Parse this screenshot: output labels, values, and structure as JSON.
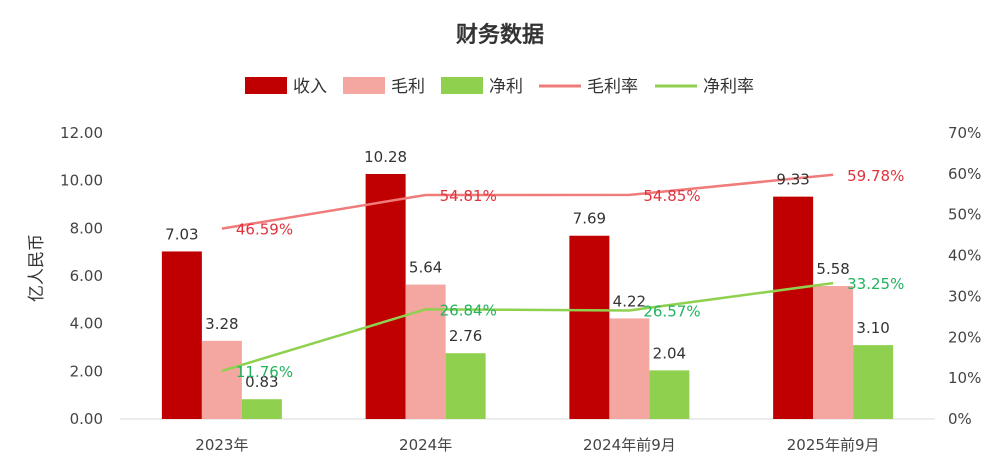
{
  "chart_data": {
    "type": "bar",
    "title": "财务数据",
    "ylabel": "亿人民币",
    "categories": [
      "2023年",
      "2024年",
      "2024年前9月",
      "2025年前9月"
    ],
    "ylim": [
      0,
      12
    ],
    "y_ticks": [
      "0.00",
      "2.00",
      "4.00",
      "6.00",
      "8.00",
      "10.00",
      "12.00"
    ],
    "y2lim": [
      0,
      70
    ],
    "y2_ticks": [
      "0%",
      "10%",
      "20%",
      "30%",
      "40%",
      "50%",
      "60%",
      "70%"
    ],
    "grid": false,
    "legend_position": "top-center",
    "series": [
      {
        "name": "收入",
        "kind": "bar",
        "color": "#C00000",
        "values": [
          7.03,
          10.28,
          7.69,
          9.33
        ],
        "labels": [
          "7.03",
          "10.28",
          "7.69",
          "9.33"
        ]
      },
      {
        "name": "毛利",
        "kind": "bar",
        "color": "#F4A6A0",
        "values": [
          3.28,
          5.64,
          4.22,
          5.58
        ],
        "labels": [
          "3.28",
          "5.64",
          "4.22",
          "5.58"
        ]
      },
      {
        "name": "净利",
        "kind": "bar",
        "color": "#8FD14F",
        "values": [
          0.83,
          2.76,
          2.04,
          3.1
        ],
        "labels": [
          "0.83",
          "2.76",
          "2.04",
          "3.10"
        ]
      },
      {
        "name": "毛利率",
        "kind": "line",
        "axis": "right",
        "color": "#F07B7B",
        "label_color": "#E0323C",
        "values": [
          46.59,
          54.81,
          54.85,
          59.78
        ],
        "labels": [
          "46.59%",
          "54.81%",
          "54.85%",
          "59.78%"
        ]
      },
      {
        "name": "净利率",
        "kind": "line",
        "axis": "right",
        "color": "#8FD14F",
        "label_color": "#22B35E",
        "values": [
          11.76,
          26.84,
          26.57,
          33.25
        ],
        "labels": [
          "11.76%",
          "26.84%",
          "26.57%",
          "33.25%"
        ]
      }
    ]
  }
}
